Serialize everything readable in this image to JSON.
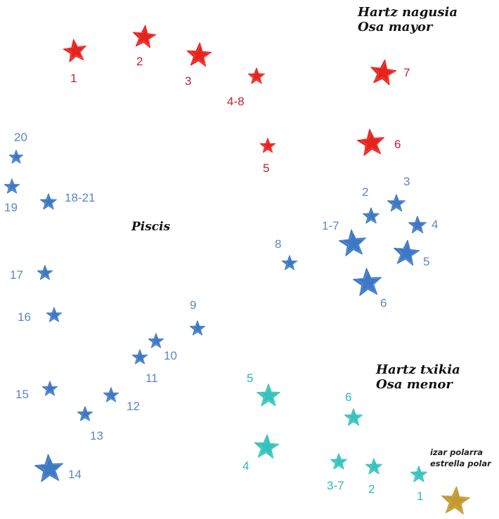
{
  "colors": {
    "osa_mayor": "#e8231e",
    "piscis": "#3d78c4",
    "osa_menor": "#36c2bd",
    "polar": "#c39a32"
  },
  "groups": {
    "osa_mayor": {
      "line1": "Hartz nagusia",
      "line2": "Osa mayor"
    },
    "piscis": {
      "name": "Piscis"
    },
    "osa_menor": {
      "line1": "Hartz txikia",
      "line2": "Osa menor"
    },
    "polar": {
      "line1": "izar polarra",
      "line2": "estrella polar"
    }
  },
  "labels": {
    "osa_mayor": [
      "1",
      "2",
      "3",
      "4-8",
      "7",
      "5",
      "6"
    ],
    "piscis": [
      "20",
      "19",
      "18-21",
      "17",
      "16",
      "15",
      "14",
      "13",
      "12",
      "11",
      "10",
      "9",
      "8",
      "1-7",
      "2",
      "3",
      "4",
      "5",
      "6"
    ],
    "osa_menor": [
      "5",
      "4",
      "6",
      "3-7",
      "2",
      "1"
    ]
  }
}
